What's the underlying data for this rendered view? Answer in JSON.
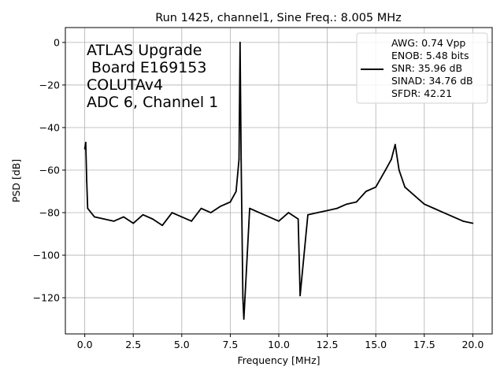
{
  "chart_data": {
    "type": "line",
    "title": "Run 1425, channel1, Sine Freq.: 8.005 MHz",
    "xlabel": "Frequency [MHz]",
    "ylabel": "PSD [dB]",
    "xlim": [
      -1.0,
      21.0
    ],
    "ylim": [
      -137,
      7
    ],
    "x_ticks": [
      0.0,
      2.5,
      5.0,
      7.5,
      10.0,
      12.5,
      15.0,
      17.5,
      20.0
    ],
    "x_tick_labels": [
      "0.0",
      "2.5",
      "5.0",
      "7.5",
      "10.0",
      "12.5",
      "15.0",
      "17.5",
      "20.0"
    ],
    "y_ticks": [
      0,
      -20,
      -40,
      -60,
      -80,
      -100,
      -120
    ],
    "y_tick_labels": [
      "0",
      "−20",
      "−40",
      "−60",
      "−80",
      "−100",
      "−120"
    ],
    "grid": true,
    "legend_position": "top-right",
    "annotation_lines": [
      "ATLAS Upgrade",
      " Board E169153",
      "COLUTAv4",
      "ADC 6, Channel 1"
    ],
    "legend_lines": [
      "AWG: 0.74 Vpp",
      "ENOB: 5.48 bits",
      "SNR: 35.96 dB",
      "SINAD: 34.76 dB",
      "SFDR: 42.21"
    ],
    "series_color": "#000000",
    "series": [
      {
        "x": [
          0.0,
          0.05,
          0.1,
          0.15,
          0.5,
          1.0,
          1.5,
          2.0,
          2.5,
          3.0,
          3.5,
          4.0,
          4.5,
          5.0,
          5.5,
          6.0,
          6.5,
          7.0,
          7.5,
          7.8,
          7.95,
          8.005,
          8.06,
          8.15,
          8.2,
          8.5,
          9.0,
          9.5,
          10.0,
          10.5,
          11.0,
          11.1,
          11.5,
          12.0,
          12.5,
          13.0,
          13.5,
          14.0,
          14.5,
          15.0,
          15.5,
          15.8,
          16.0,
          16.2,
          16.5,
          17.0,
          17.5,
          18.0,
          18.5,
          19.0,
          19.5,
          20.0
        ],
        "y": [
          -50,
          -47,
          -65,
          -78,
          -82,
          -83,
          -84,
          -82,
          -85,
          -81,
          -83,
          -86,
          -80,
          -82,
          -84,
          -78,
          -80,
          -77,
          -75,
          -70,
          -55,
          0,
          -55,
          -120,
          -130,
          -78,
          -80,
          -82,
          -84,
          -80,
          -83,
          -119,
          -81,
          -80,
          -79,
          -78,
          -76,
          -75,
          -70,
          -68,
          -60,
          -55,
          -48,
          -60,
          -68,
          -72,
          -76,
          -78,
          -80,
          -82,
          -84,
          -85
        ]
      }
    ]
  }
}
